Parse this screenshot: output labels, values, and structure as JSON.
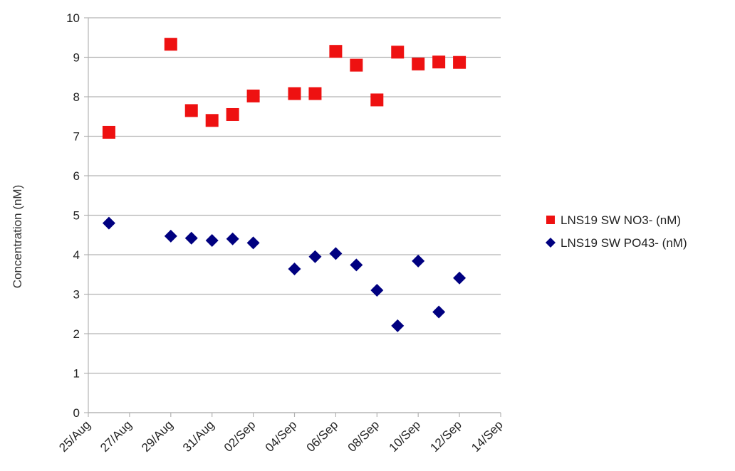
{
  "chart_data": {
    "type": "scatter",
    "ylabel": "Concentration (nM)",
    "xlabel": "",
    "ylim": [
      0,
      10
    ],
    "yticks": [
      0,
      1,
      2,
      3,
      4,
      5,
      6,
      7,
      8,
      9,
      10
    ],
    "x_tick_labels": [
      "25/Aug",
      "27/Aug",
      "29/Aug",
      "31/Aug",
      "02/Sep",
      "04/Sep",
      "06/Sep",
      "08/Sep",
      "10/Sep",
      "12/Sep",
      "14/Sep"
    ],
    "grid": "horizontal",
    "legend_position": "right",
    "series": [
      {
        "name": "LNS19 SW NO3- (nM)",
        "marker": "square",
        "color": "#ee1111",
        "points": [
          {
            "x": "26/Aug",
            "y": 7.1
          },
          {
            "x": "29/Aug",
            "y": 9.33
          },
          {
            "x": "30/Aug",
            "y": 7.65
          },
          {
            "x": "31/Aug",
            "y": 7.4
          },
          {
            "x": "01/Sep",
            "y": 7.55
          },
          {
            "x": "02/Sep",
            "y": 8.02
          },
          {
            "x": "04/Sep",
            "y": 8.08
          },
          {
            "x": "05/Sep",
            "y": 8.08
          },
          {
            "x": "06/Sep",
            "y": 9.15
          },
          {
            "x": "07/Sep",
            "y": 8.8
          },
          {
            "x": "08/Sep",
            "y": 7.92
          },
          {
            "x": "09/Sep",
            "y": 9.13
          },
          {
            "x": "10/Sep",
            "y": 8.83
          },
          {
            "x": "11/Sep",
            "y": 8.88
          },
          {
            "x": "12/Sep",
            "y": 8.87
          }
        ]
      },
      {
        "name": "LNS19 SW PO43- (nM)",
        "marker": "diamond",
        "color": "#000080",
        "points": [
          {
            "x": "26/Aug",
            "y": 4.8
          },
          {
            "x": "29/Aug",
            "y": 4.47
          },
          {
            "x": "30/Aug",
            "y": 4.42
          },
          {
            "x": "31/Aug",
            "y": 4.36
          },
          {
            "x": "01/Sep",
            "y": 4.4
          },
          {
            "x": "02/Sep",
            "y": 4.3
          },
          {
            "x": "04/Sep",
            "y": 3.64
          },
          {
            "x": "05/Sep",
            "y": 3.95
          },
          {
            "x": "06/Sep",
            "y": 4.03
          },
          {
            "x": "07/Sep",
            "y": 3.74
          },
          {
            "x": "08/Sep",
            "y": 3.1
          },
          {
            "x": "09/Sep",
            "y": 2.2
          },
          {
            "x": "10/Sep",
            "y": 3.84
          },
          {
            "x": "11/Sep",
            "y": 2.55
          },
          {
            "x": "12/Sep",
            "y": 3.41
          }
        ]
      }
    ]
  }
}
